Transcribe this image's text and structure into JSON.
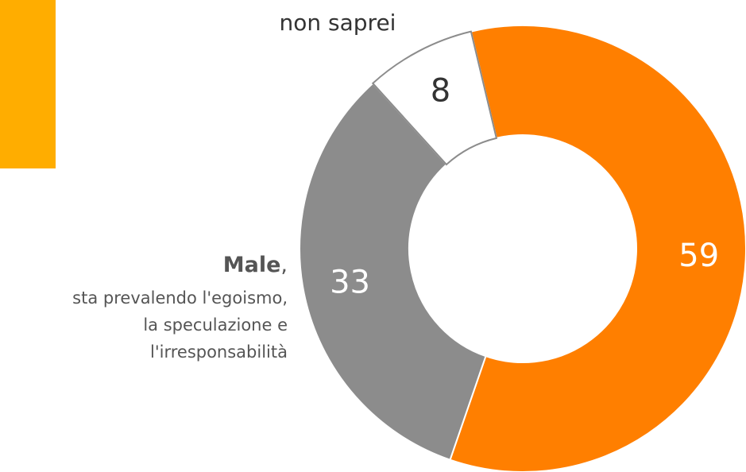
{
  "chart_data": {
    "type": "donut",
    "categories": [
      null,
      "Male",
      "non saprei"
    ],
    "category_notes": [
      null,
      [
        ",",
        "sta prevalendo l'egoismo,",
        "la speculazione e",
        "l'irresponsabilità"
      ],
      null
    ],
    "values": [
      59,
      33,
      8
    ],
    "colors": [
      "#ff7f00",
      "#8c8c8c",
      "#ffffff"
    ],
    "label_colors": [
      "#ffffff",
      "#ffffff",
      "#333333"
    ]
  }
}
